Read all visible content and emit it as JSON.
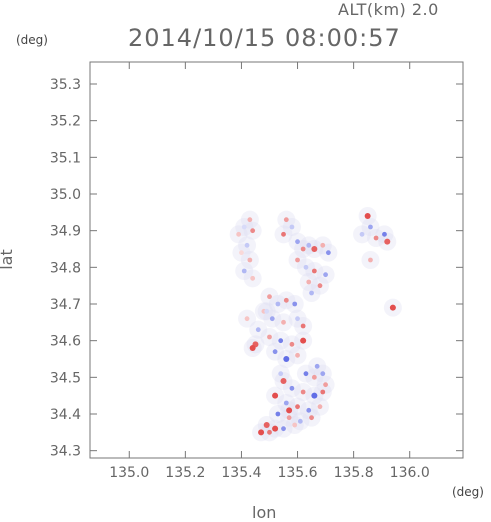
{
  "header": {
    "alt_label": "ALT(km) 2.0",
    "timestamp": "2014/10/15 08:00:57"
  },
  "chart_data": {
    "type": "scatter",
    "title": "2014/10/15 08:00:57",
    "xlabel": "lon",
    "ylabel": "lat",
    "x_unit": "(deg)",
    "y_unit": "(deg)",
    "xlim": [
      134.86,
      136.19
    ],
    "ylim": [
      34.28,
      35.36
    ],
    "x_ticks": [
      135.0,
      135.2,
      135.4,
      135.6,
      135.8,
      136.0
    ],
    "x_tick_labels": [
      "135.0",
      "135.2",
      "135.4",
      "135.6",
      "135.8",
      "136.0"
    ],
    "y_ticks": [
      34.3,
      34.4,
      34.5,
      34.6,
      34.7,
      34.8,
      34.9,
      35.0,
      35.1,
      35.2,
      35.3
    ],
    "y_tick_labels": [
      "34.3",
      "34.4",
      "34.5",
      "34.6",
      "34.7",
      "34.8",
      "34.9",
      "35.0",
      "35.1",
      "35.2",
      "35.3"
    ],
    "grid": false,
    "colors": {
      "positive": "#e03a3a",
      "negative": "#3a4ae0",
      "neutral": "#dcdcf0"
    },
    "points": [
      [
        135.43,
        34.93,
        0.4
      ],
      [
        135.41,
        34.91,
        -0.2
      ],
      [
        135.44,
        34.9,
        0.6
      ],
      [
        135.39,
        34.89,
        0.3
      ],
      [
        135.42,
        34.86,
        -0.3
      ],
      [
        135.4,
        34.84,
        0.2
      ],
      [
        135.43,
        34.82,
        0.4
      ],
      [
        135.41,
        34.79,
        -0.4
      ],
      [
        135.44,
        34.77,
        0.3
      ],
      [
        135.56,
        34.93,
        0.5
      ],
      [
        135.58,
        34.91,
        -0.3
      ],
      [
        135.55,
        34.89,
        0.7
      ],
      [
        135.6,
        34.87,
        -0.5
      ],
      [
        135.62,
        34.85,
        0.6
      ],
      [
        135.64,
        34.86,
        -0.4
      ],
      [
        135.66,
        34.85,
        0.8
      ],
      [
        135.69,
        34.86,
        0.4
      ],
      [
        135.71,
        34.84,
        -0.6
      ],
      [
        135.6,
        34.82,
        0.5
      ],
      [
        135.63,
        34.8,
        -0.3
      ],
      [
        135.66,
        34.79,
        0.7
      ],
      [
        135.7,
        34.78,
        -0.5
      ],
      [
        135.64,
        34.76,
        0.4
      ],
      [
        135.68,
        34.75,
        0.6
      ],
      [
        135.65,
        34.73,
        -0.4
      ],
      [
        135.85,
        34.94,
        0.9
      ],
      [
        135.86,
        34.91,
        -0.5
      ],
      [
        135.88,
        34.88,
        0.6
      ],
      [
        135.91,
        34.89,
        -0.7
      ],
      [
        135.92,
        34.87,
        0.8
      ],
      [
        135.83,
        34.89,
        -0.3
      ],
      [
        135.86,
        34.82,
        0.4
      ],
      [
        135.94,
        34.69,
        0.9
      ],
      [
        135.5,
        34.72,
        0.5
      ],
      [
        135.53,
        34.7,
        -0.4
      ],
      [
        135.56,
        34.71,
        0.6
      ],
      [
        135.59,
        34.7,
        -0.6
      ],
      [
        135.48,
        34.68,
        0.3
      ],
      [
        135.51,
        34.66,
        -0.5
      ],
      [
        135.55,
        34.65,
        0.4
      ],
      [
        135.6,
        34.66,
        -0.3
      ],
      [
        135.62,
        34.64,
        0.7
      ],
      [
        135.46,
        34.63,
        -0.4
      ],
      [
        135.5,
        34.61,
        0.5
      ],
      [
        135.54,
        34.6,
        -0.7
      ],
      [
        135.58,
        34.59,
        0.6
      ],
      [
        135.62,
        34.6,
        0.9
      ],
      [
        135.52,
        34.57,
        -0.6
      ],
      [
        135.56,
        34.55,
        -0.8
      ],
      [
        135.6,
        34.56,
        0.4
      ],
      [
        135.45,
        34.59,
        0.8
      ],
      [
        135.49,
        34.68,
        -0.2
      ],
      [
        135.42,
        34.66,
        0.3
      ],
      [
        135.63,
        34.51,
        -0.7
      ],
      [
        135.66,
        34.5,
        0.5
      ],
      [
        135.69,
        34.51,
        -0.5
      ],
      [
        135.55,
        34.49,
        0.8
      ],
      [
        135.58,
        34.47,
        -0.6
      ],
      [
        135.62,
        34.46,
        0.6
      ],
      [
        135.66,
        34.45,
        -0.8
      ],
      [
        135.69,
        34.46,
        0.7
      ],
      [
        135.52,
        34.45,
        0.9
      ],
      [
        135.56,
        34.43,
        -0.5
      ],
      [
        135.6,
        34.42,
        0.7
      ],
      [
        135.64,
        34.41,
        -0.6
      ],
      [
        135.68,
        34.42,
        0.4
      ],
      [
        135.53,
        34.4,
        -0.7
      ],
      [
        135.57,
        34.39,
        0.5
      ],
      [
        135.61,
        34.38,
        -0.4
      ],
      [
        135.65,
        34.39,
        0.6
      ],
      [
        135.49,
        34.37,
        0.8
      ],
      [
        135.52,
        34.36,
        0.9
      ],
      [
        135.55,
        34.36,
        -0.6
      ],
      [
        135.59,
        34.37,
        0.3
      ],
      [
        135.47,
        34.35,
        0.9
      ],
      [
        135.5,
        34.35,
        0.7
      ],
      [
        135.57,
        34.41,
        0.9
      ],
      [
        135.44,
        34.58,
        0.9
      ],
      [
        135.67,
        34.53,
        -0.5
      ],
      [
        135.7,
        34.48,
        0.5
      ],
      [
        135.54,
        34.51,
        -0.3
      ]
    ]
  }
}
